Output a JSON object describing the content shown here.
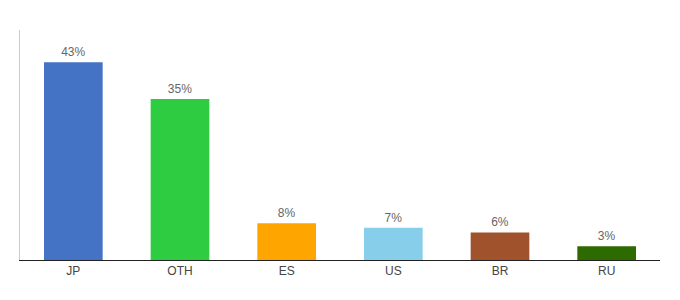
{
  "chart_data": {
    "type": "bar",
    "categories": [
      "JP",
      "OTH",
      "ES",
      "US",
      "BR",
      "RU"
    ],
    "values": [
      43,
      35,
      8,
      7,
      6,
      3
    ],
    "value_labels": [
      "43%",
      "35%",
      "8%",
      "7%",
      "6%",
      "3%"
    ],
    "data_labels": true,
    "colors": [
      "#4472C4",
      "#2ECC40",
      "#FFA500",
      "#87CEEB",
      "#A0522D",
      "#2D6A00"
    ],
    "ylim": [
      0,
      50
    ],
    "grid": false,
    "tick_labels": "x"
  }
}
